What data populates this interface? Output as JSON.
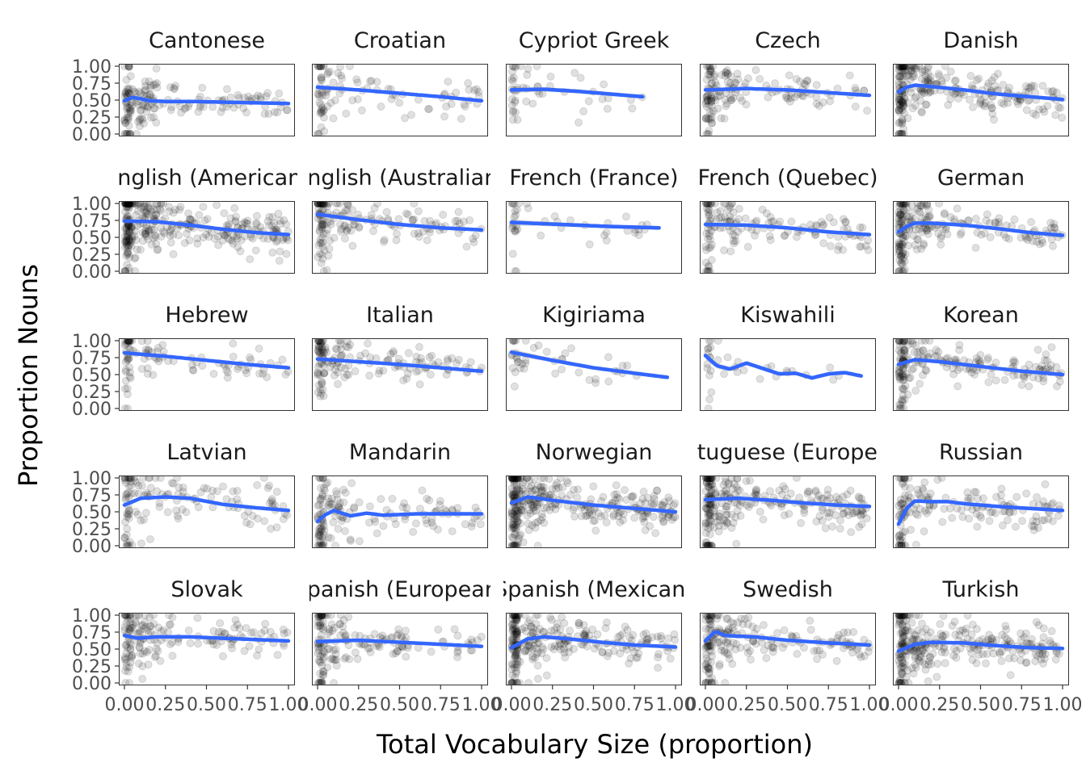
{
  "chart_data": {
    "type": "scatter",
    "xlabel": "Total Vocabulary Size (proportion)",
    "ylabel": "Proportion Nouns",
    "xlim": [
      0,
      1
    ],
    "ylim": [
      0,
      1
    ],
    "x_ticks": [
      "0.00",
      "0.25",
      "0.50",
      "0.75",
      "1.00"
    ],
    "y_ticks": [
      "0.00",
      "0.25",
      "0.50",
      "0.75",
      "1.00"
    ],
    "grid": false,
    "facet_layout": "5x5",
    "point_color": "#000000",
    "smooth_color": "#3366FF",
    "panels": [
      {
        "name": "Cantonese",
        "density": 1.0,
        "x_max": 1.0,
        "spread": 0.12,
        "smooth": [
          [
            0.0,
            0.49
          ],
          [
            0.05,
            0.54
          ],
          [
            0.1,
            0.52
          ],
          [
            0.15,
            0.49
          ],
          [
            0.25,
            0.48
          ],
          [
            0.4,
            0.48
          ],
          [
            0.6,
            0.47
          ],
          [
            0.8,
            0.46
          ],
          [
            1.0,
            0.45
          ]
        ]
      },
      {
        "name": "Croatian",
        "density": 0.6,
        "x_max": 1.0,
        "spread": 0.14,
        "smooth": [
          [
            0.0,
            0.69
          ],
          [
            0.25,
            0.65
          ],
          [
            0.5,
            0.6
          ],
          [
            0.75,
            0.55
          ],
          [
            1.0,
            0.49
          ]
        ]
      },
      {
        "name": "Cypriot Greek",
        "density": 0.3,
        "x_max": 0.8,
        "spread": 0.14,
        "smooth": [
          [
            0.0,
            0.65
          ],
          [
            0.2,
            0.66
          ],
          [
            0.4,
            0.63
          ],
          [
            0.6,
            0.59
          ],
          [
            0.8,
            0.55
          ]
        ]
      },
      {
        "name": "Czech",
        "density": 0.9,
        "x_max": 1.0,
        "spread": 0.12,
        "smooth": [
          [
            0.0,
            0.65
          ],
          [
            0.25,
            0.67
          ],
          [
            0.5,
            0.65
          ],
          [
            0.75,
            0.61
          ],
          [
            1.0,
            0.57
          ]
        ]
      },
      {
        "name": "Danish",
        "density": 1.6,
        "x_max": 1.0,
        "spread": 0.13,
        "smooth": [
          [
            0.0,
            0.62
          ],
          [
            0.05,
            0.69
          ],
          [
            0.1,
            0.72
          ],
          [
            0.2,
            0.7
          ],
          [
            0.4,
            0.65
          ],
          [
            0.6,
            0.59
          ],
          [
            0.8,
            0.55
          ],
          [
            1.0,
            0.51
          ]
        ]
      },
      {
        "name": "English (American)",
        "density": 2.0,
        "x_max": 1.0,
        "spread": 0.15,
        "smooth": [
          [
            0.0,
            0.74
          ],
          [
            0.2,
            0.73
          ],
          [
            0.4,
            0.68
          ],
          [
            0.6,
            0.62
          ],
          [
            0.8,
            0.57
          ],
          [
            1.0,
            0.54
          ]
        ]
      },
      {
        "name": "English (Australian)",
        "density": 1.0,
        "x_max": 1.0,
        "spread": 0.13,
        "smooth": [
          [
            0.0,
            0.84
          ],
          [
            0.25,
            0.76
          ],
          [
            0.5,
            0.69
          ],
          [
            0.75,
            0.64
          ],
          [
            1.0,
            0.61
          ]
        ]
      },
      {
        "name": "French (France)",
        "density": 0.25,
        "x_max": 0.9,
        "spread": 0.1,
        "smooth": [
          [
            0.0,
            0.72
          ],
          [
            0.3,
            0.69
          ],
          [
            0.6,
            0.66
          ],
          [
            0.9,
            0.64
          ]
        ]
      },
      {
        "name": "French (Quebec)",
        "density": 0.9,
        "x_max": 1.0,
        "spread": 0.12,
        "smooth": [
          [
            0.0,
            0.69
          ],
          [
            0.25,
            0.68
          ],
          [
            0.5,
            0.64
          ],
          [
            0.75,
            0.58
          ],
          [
            1.0,
            0.54
          ]
        ]
      },
      {
        "name": "German",
        "density": 1.3,
        "x_max": 1.0,
        "spread": 0.12,
        "smooth": [
          [
            0.0,
            0.58
          ],
          [
            0.05,
            0.66
          ],
          [
            0.1,
            0.71
          ],
          [
            0.2,
            0.71
          ],
          [
            0.4,
            0.68
          ],
          [
            0.6,
            0.63
          ],
          [
            0.8,
            0.57
          ],
          [
            1.0,
            0.53
          ]
        ]
      },
      {
        "name": "Hebrew",
        "density": 0.6,
        "x_max": 1.0,
        "spread": 0.1,
        "smooth": [
          [
            0.0,
            0.82
          ],
          [
            0.25,
            0.77
          ],
          [
            0.5,
            0.71
          ],
          [
            0.75,
            0.65
          ],
          [
            1.0,
            0.6
          ]
        ]
      },
      {
        "name": "Italian",
        "density": 0.9,
        "x_max": 1.0,
        "spread": 0.12,
        "smooth": [
          [
            0.0,
            0.73
          ],
          [
            0.25,
            0.69
          ],
          [
            0.5,
            0.65
          ],
          [
            0.75,
            0.6
          ],
          [
            1.0,
            0.55
          ]
        ]
      },
      {
        "name": "Kigiriama",
        "density": 0.25,
        "x_max": 0.95,
        "spread": 0.1,
        "smooth": [
          [
            0.0,
            0.83
          ],
          [
            0.25,
            0.71
          ],
          [
            0.5,
            0.6
          ],
          [
            0.75,
            0.52
          ],
          [
            0.95,
            0.46
          ]
        ]
      },
      {
        "name": "Kiswahili",
        "density": 0.2,
        "x_max": 0.95,
        "spread": 0.1,
        "smooth": [
          [
            0.0,
            0.78
          ],
          [
            0.07,
            0.63
          ],
          [
            0.15,
            0.58
          ],
          [
            0.25,
            0.67
          ],
          [
            0.35,
            0.59
          ],
          [
            0.45,
            0.51
          ],
          [
            0.55,
            0.52
          ],
          [
            0.65,
            0.45
          ],
          [
            0.75,
            0.51
          ],
          [
            0.85,
            0.53
          ],
          [
            0.95,
            0.48
          ]
        ]
      },
      {
        "name": "Korean",
        "density": 1.2,
        "x_max": 1.0,
        "spread": 0.12,
        "smooth": [
          [
            0.0,
            0.65
          ],
          [
            0.1,
            0.72
          ],
          [
            0.25,
            0.69
          ],
          [
            0.5,
            0.62
          ],
          [
            0.75,
            0.55
          ],
          [
            1.0,
            0.5
          ]
        ]
      },
      {
        "name": "Latvian",
        "density": 0.8,
        "x_max": 1.0,
        "spread": 0.16,
        "smooth": [
          [
            0.0,
            0.6
          ],
          [
            0.1,
            0.7
          ],
          [
            0.25,
            0.72
          ],
          [
            0.4,
            0.7
          ],
          [
            0.6,
            0.61
          ],
          [
            0.8,
            0.56
          ],
          [
            1.0,
            0.52
          ]
        ]
      },
      {
        "name": "Mandarin",
        "density": 0.9,
        "x_max": 1.0,
        "spread": 0.14,
        "smooth": [
          [
            0.0,
            0.36
          ],
          [
            0.05,
            0.46
          ],
          [
            0.1,
            0.52
          ],
          [
            0.15,
            0.48
          ],
          [
            0.2,
            0.44
          ],
          [
            0.3,
            0.48
          ],
          [
            0.4,
            0.45
          ],
          [
            0.6,
            0.47
          ],
          [
            0.8,
            0.47
          ],
          [
            1.0,
            0.47
          ]
        ]
      },
      {
        "name": "Norwegian",
        "density": 2.0,
        "x_max": 1.0,
        "spread": 0.14,
        "smooth": [
          [
            0.0,
            0.63
          ],
          [
            0.1,
            0.72
          ],
          [
            0.25,
            0.67
          ],
          [
            0.5,
            0.6
          ],
          [
            0.75,
            0.55
          ],
          [
            1.0,
            0.5
          ]
        ]
      },
      {
        "name": "Portuguese (European)",
        "density": 1.6,
        "x_max": 1.0,
        "spread": 0.14,
        "smooth": [
          [
            0.0,
            0.68
          ],
          [
            0.2,
            0.7
          ],
          [
            0.4,
            0.67
          ],
          [
            0.6,
            0.63
          ],
          [
            0.8,
            0.6
          ],
          [
            1.0,
            0.58
          ]
        ]
      },
      {
        "name": "Russian",
        "density": 1.0,
        "x_max": 1.0,
        "spread": 0.14,
        "smooth": [
          [
            0.0,
            0.32
          ],
          [
            0.05,
            0.55
          ],
          [
            0.1,
            0.66
          ],
          [
            0.2,
            0.65
          ],
          [
            0.3,
            0.65
          ],
          [
            0.4,
            0.62
          ],
          [
            0.6,
            0.58
          ],
          [
            0.8,
            0.55
          ],
          [
            1.0,
            0.52
          ]
        ]
      },
      {
        "name": "Slovak",
        "density": 1.0,
        "x_max": 1.0,
        "spread": 0.12,
        "smooth": [
          [
            0.0,
            0.7
          ],
          [
            0.08,
            0.66
          ],
          [
            0.2,
            0.68
          ],
          [
            0.4,
            0.68
          ],
          [
            0.6,
            0.66
          ],
          [
            0.8,
            0.64
          ],
          [
            1.0,
            0.62
          ]
        ]
      },
      {
        "name": "Spanish (European)",
        "density": 1.0,
        "x_max": 1.0,
        "spread": 0.13,
        "smooth": [
          [
            0.0,
            0.61
          ],
          [
            0.25,
            0.63
          ],
          [
            0.5,
            0.6
          ],
          [
            0.75,
            0.57
          ],
          [
            1.0,
            0.54
          ]
        ]
      },
      {
        "name": "Spanish (Mexican)",
        "density": 1.6,
        "x_max": 1.0,
        "spread": 0.14,
        "smooth": [
          [
            0.0,
            0.52
          ],
          [
            0.1,
            0.65
          ],
          [
            0.2,
            0.68
          ],
          [
            0.35,
            0.65
          ],
          [
            0.55,
            0.6
          ],
          [
            0.75,
            0.56
          ],
          [
            1.0,
            0.53
          ]
        ]
      },
      {
        "name": "Swedish",
        "density": 1.2,
        "x_max": 1.0,
        "spread": 0.13,
        "smooth": [
          [
            0.0,
            0.62
          ],
          [
            0.06,
            0.76
          ],
          [
            0.12,
            0.7
          ],
          [
            0.2,
            0.69
          ],
          [
            0.3,
            0.68
          ],
          [
            0.5,
            0.63
          ],
          [
            0.75,
            0.59
          ],
          [
            1.0,
            0.56
          ]
        ]
      },
      {
        "name": "Turkish",
        "density": 1.8,
        "x_max": 1.0,
        "spread": 0.15,
        "smooth": [
          [
            0.0,
            0.47
          ],
          [
            0.1,
            0.57
          ],
          [
            0.2,
            0.6
          ],
          [
            0.4,
            0.59
          ],
          [
            0.6,
            0.55
          ],
          [
            0.8,
            0.52
          ],
          [
            1.0,
            0.51
          ]
        ]
      }
    ]
  }
}
